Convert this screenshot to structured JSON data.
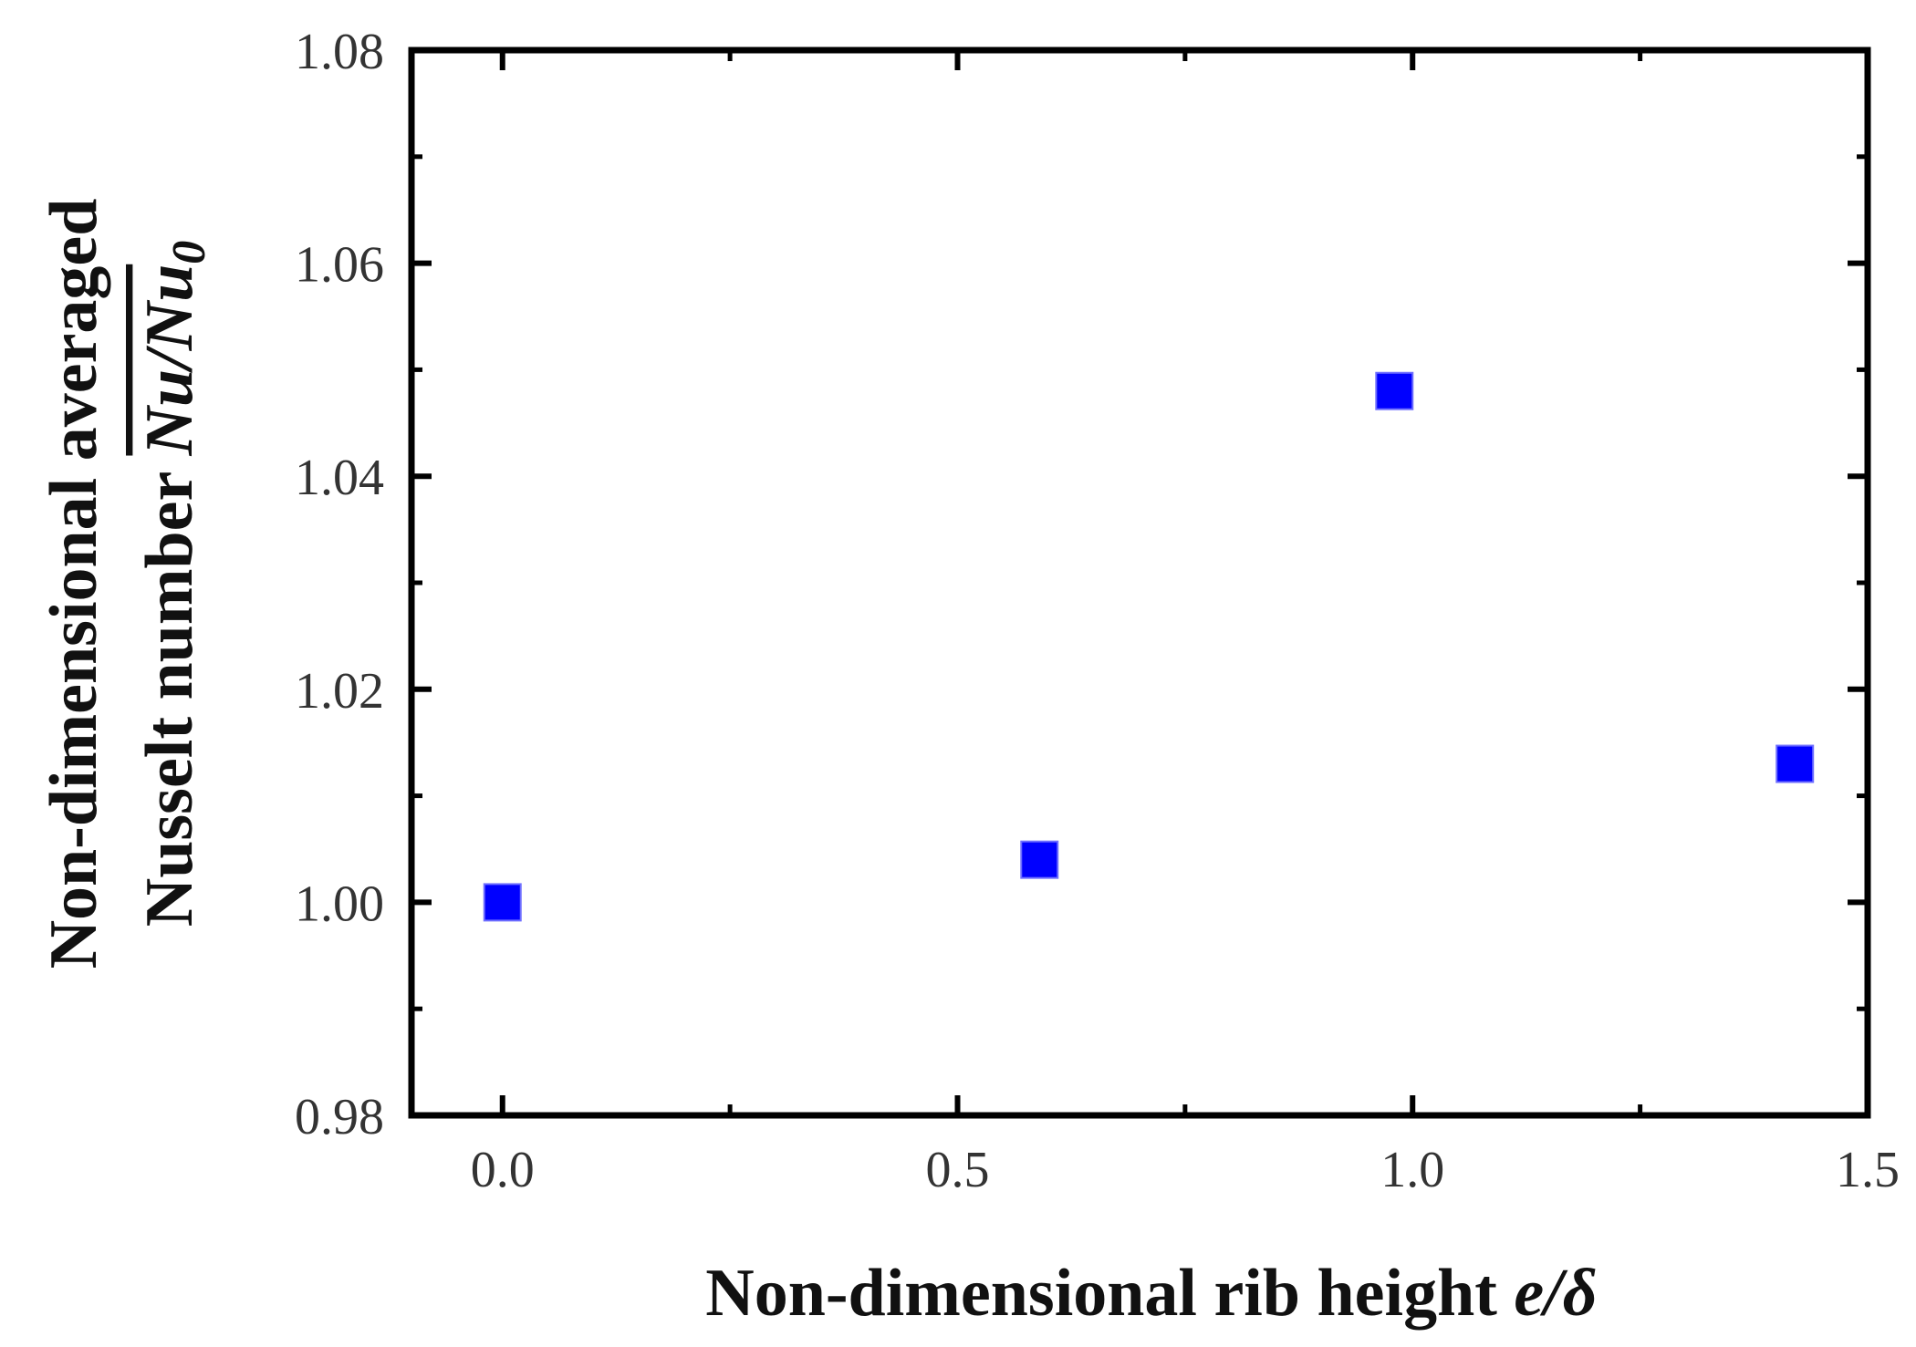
{
  "chart_data": {
    "type": "scatter",
    "xlabel": {
      "text": "Non-dimensional rib height ",
      "symbol": "e/δ"
    },
    "ylabel": {
      "line1": "Non-dimensional averaged",
      "line2_text": "Nusselt number ",
      "line2_symbol": "Nu/Nu",
      "line2_subscript": "0"
    },
    "xlim": [
      -0.1,
      1.5
    ],
    "ylim": [
      0.98,
      1.08
    ],
    "x_ticks": [
      "0.0",
      "0.5",
      "1.0",
      "1.5"
    ],
    "x_tick_values": [
      0.0,
      0.5,
      1.0,
      1.5
    ],
    "y_ticks": [
      "0.98",
      "1.00",
      "1.02",
      "1.04",
      "1.06",
      "1.08"
    ],
    "y_tick_values": [
      0.98,
      1.0,
      1.02,
      1.04,
      1.06,
      1.08
    ],
    "grid": false,
    "marker": "square",
    "marker_color": "#0000ff",
    "series": [
      {
        "x": [
          0.0,
          0.59,
          0.98,
          1.42
        ],
        "y": [
          1.0,
          1.004,
          1.048,
          1.013
        ]
      }
    ]
  }
}
